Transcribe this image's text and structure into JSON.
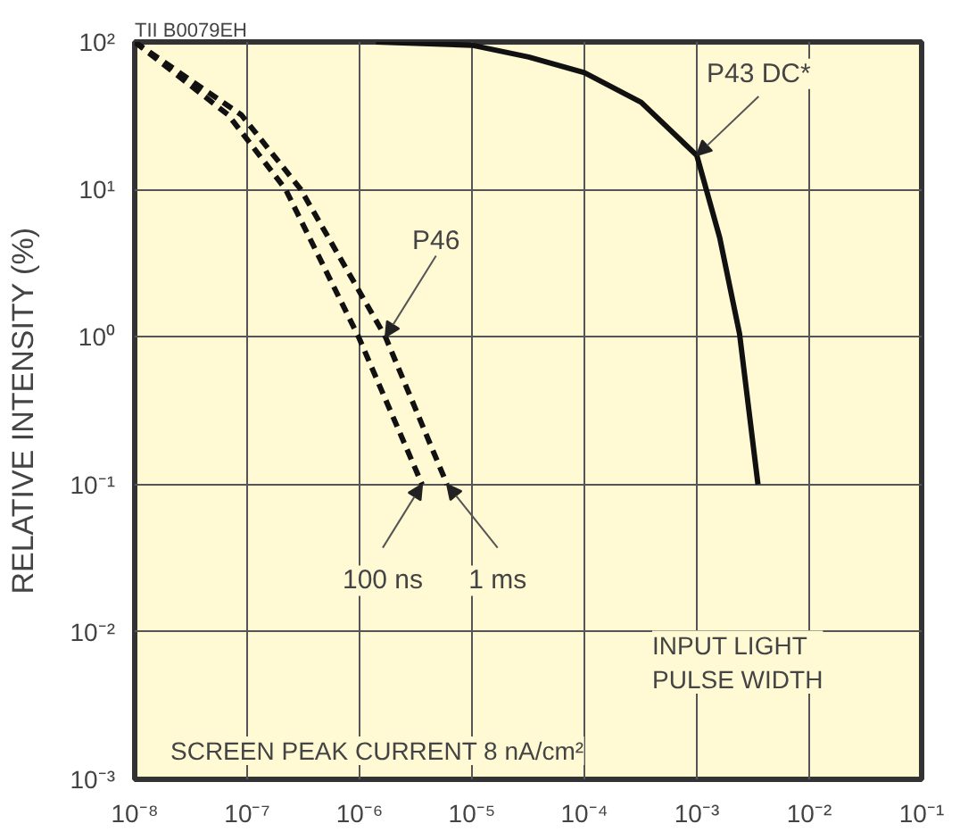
{
  "chart_data": {
    "type": "line",
    "ylabel": "RELATIVE INTENSITY (%)",
    "log": "xy",
    "grid": true,
    "marker": "none",
    "xlim": [
      1e-08,
      0.1
    ],
    "ylim": [
      0.001,
      100
    ],
    "xticks": [
      {
        "value": 1e-08,
        "label": "10⁻⁸"
      },
      {
        "value": 1e-07,
        "label": "10⁻⁷"
      },
      {
        "value": 1e-06,
        "label": "10⁻⁶"
      },
      {
        "value": 1e-05,
        "label": "10⁻⁵"
      },
      {
        "value": 0.0001,
        "label": "10⁻⁴"
      },
      {
        "value": 0.001,
        "label": "10⁻³"
      },
      {
        "value": 0.01,
        "label": "10⁻²"
      },
      {
        "value": 0.1,
        "label": "10⁻¹"
      }
    ],
    "yticks": [
      {
        "value": 0.001,
        "label": "10⁻³"
      },
      {
        "value": 0.01,
        "label": "10⁻²"
      },
      {
        "value": 0.1,
        "label": "10⁻¹"
      },
      {
        "value": 1,
        "label": "10⁰"
      },
      {
        "value": 10,
        "label": "10¹"
      },
      {
        "value": 100,
        "label": "10²"
      }
    ],
    "series": [
      {
        "name": "100 ns",
        "color": "#111111",
        "line_style": "dashed",
        "x": [
          1e-08,
          6.8e-08,
          2.2e-07,
          9.8e-07,
          3.6e-06
        ],
        "values": [
          100,
          32,
          10,
          1,
          0.1
        ]
      },
      {
        "name": "1 ms",
        "color": "#111111",
        "line_style": "dashed",
        "x": [
          1e-08,
          8.9e-08,
          3e-07,
          1.7e-06,
          6e-06
        ],
        "values": [
          100,
          32,
          10,
          1,
          0.1
        ]
      },
      {
        "name": "P43 DC*",
        "color": "#111111",
        "line_style": "solid",
        "x": [
          1.4e-06,
          1e-05,
          3.2e-05,
          0.0001,
          0.00032,
          0.001,
          0.0016,
          0.0024,
          0.0035
        ],
        "values": [
          100,
          95,
          79,
          62,
          39,
          17,
          4.7,
          1.05,
          0.1
        ]
      }
    ],
    "annotations": [
      "TII B0079EH",
      {
        "text": "P46",
        "x": 1.7e-06,
        "y": 1
      },
      "SCREEN PEAK CURRENT 8 nA/cm²",
      "INPUT LIGHT\nPULSE WIDTH"
    ]
  }
}
